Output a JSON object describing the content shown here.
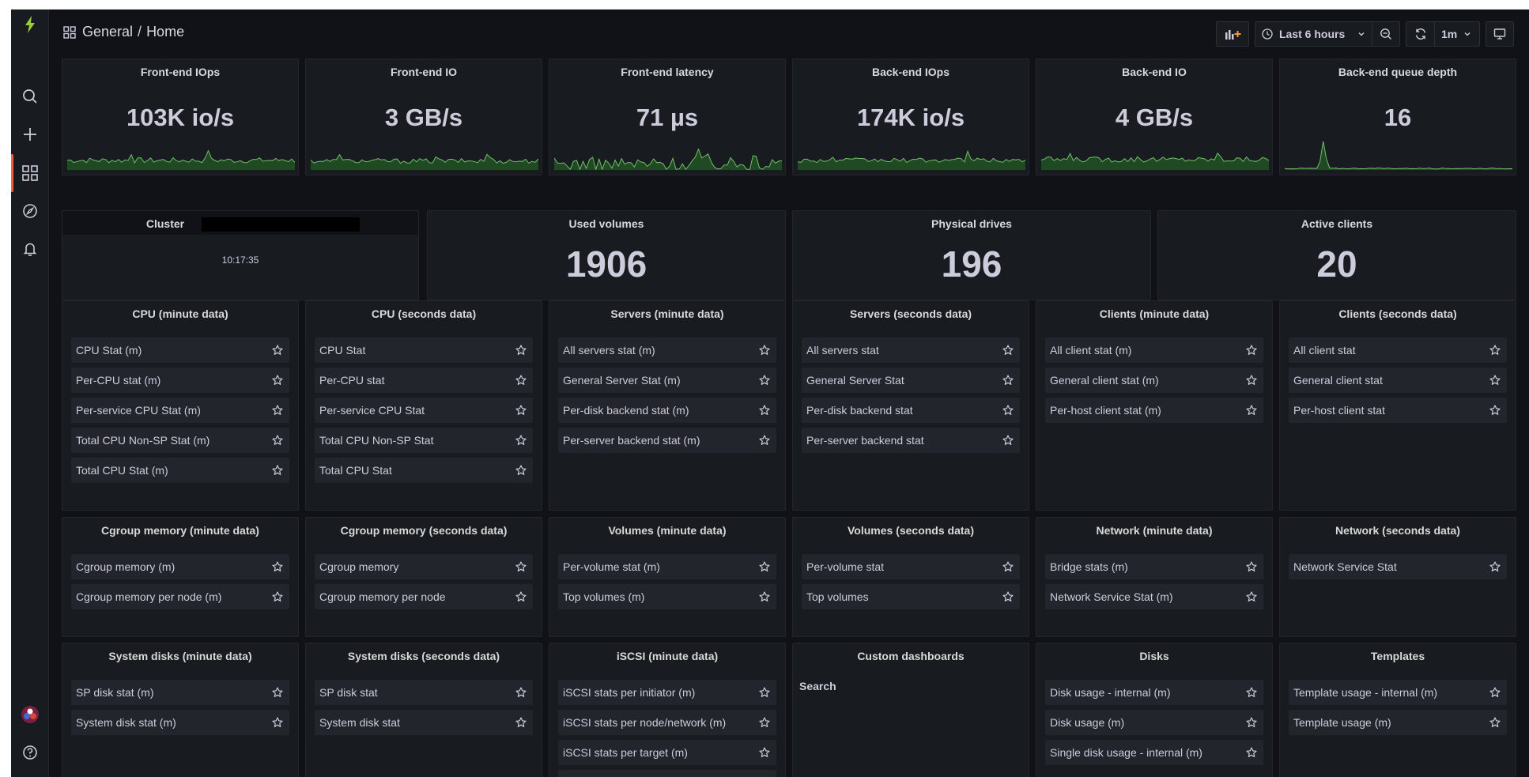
{
  "breadcrumb": {
    "folder": "General",
    "separator": "/",
    "page": "Home"
  },
  "toolbar": {
    "time_range": "Last 6 hours",
    "refresh_interval": "1m"
  },
  "colors": {
    "accent": "#f55f3e",
    "spark_line": "#73bf69",
    "spark_fill": "#1f4a24",
    "background": "#111217",
    "panel": "#181b1f"
  },
  "stats_row1": [
    {
      "title": "Front-end IOps",
      "value": "103K io/s"
    },
    {
      "title": "Front-end IO",
      "value": "3 GB/s"
    },
    {
      "title": "Front-end latency",
      "value": "71 µs"
    },
    {
      "title": "Back-end IOps",
      "value": "174K io/s"
    },
    {
      "title": "Back-end IO",
      "value": "4 GB/s"
    },
    {
      "title": "Back-end queue depth",
      "value": "16"
    }
  ],
  "cluster": {
    "title": "Cluster",
    "time": "10:17:35"
  },
  "stats_row2": [
    {
      "title": "Used volumes",
      "value": "1906"
    },
    {
      "title": "Physical drives",
      "value": "196"
    },
    {
      "title": "Active clients",
      "value": "20"
    }
  ],
  "lists_row1": [
    {
      "title": "CPU (minute data)",
      "items": [
        "CPU Stat (m)",
        "Per-CPU stat (m)",
        "Per-service CPU Stat (m)",
        "Total CPU Non-SP Stat (m)",
        "Total CPU Stat (m)"
      ]
    },
    {
      "title": "CPU (seconds data)",
      "items": [
        "CPU Stat",
        "Per-CPU stat",
        "Per-service CPU Stat",
        "Total CPU Non-SP Stat",
        "Total CPU Stat"
      ]
    },
    {
      "title": "Servers (minute data)",
      "items": [
        "All servers stat (m)",
        "General Server Stat (m)",
        "Per-disk backend stat (m)",
        "Per-server backend stat (m)"
      ]
    },
    {
      "title": "Servers (seconds data)",
      "items": [
        "All servers stat",
        "General Server Stat",
        "Per-disk backend stat",
        "Per-server backend stat"
      ]
    },
    {
      "title": "Clients (minute data)",
      "items": [
        "All client stat (m)",
        "General client stat (m)",
        "Per-host client stat (m)"
      ]
    },
    {
      "title": "Clients (seconds data)",
      "items": [
        "All client stat",
        "General client stat",
        "Per-host client stat"
      ]
    }
  ],
  "lists_row2": [
    {
      "title": "Cgroup memory (minute data)",
      "items": [
        "Cgroup memory (m)",
        "Cgroup memory per node (m)"
      ]
    },
    {
      "title": "Cgroup memory (seconds data)",
      "items": [
        "Cgroup memory",
        "Cgroup memory per node"
      ]
    },
    {
      "title": "Volumes (minute data)",
      "items": [
        "Per-volume stat (m)",
        "Top volumes (m)"
      ]
    },
    {
      "title": "Volumes (seconds data)",
      "items": [
        "Per-volume stat",
        "Top volumes"
      ]
    },
    {
      "title": "Network (minute data)",
      "items": [
        "Bridge stats (m)",
        "Network Service Stat (m)"
      ]
    },
    {
      "title": "Network (seconds data)",
      "items": [
        "Network Service Stat"
      ]
    }
  ],
  "lists_row3": [
    {
      "title": "System disks (minute data)",
      "items": [
        "SP disk stat (m)",
        "System disk stat (m)"
      ]
    },
    {
      "title": "System disks (seconds data)",
      "items": [
        "SP disk stat",
        "System disk stat"
      ]
    },
    {
      "title": "iSCSI (minute data)",
      "items": [
        "iSCSI stats per initiator (m)",
        "iSCSI stats per node/network (m)",
        "iSCSI stats per target (m)",
        ""
      ]
    },
    {
      "title": "Custom dashboards",
      "search_label": "Search",
      "items": []
    },
    {
      "title": "Disks",
      "items": [
        "Disk usage - internal (m)",
        "Disk usage (m)",
        "Single disk usage - internal (m)"
      ]
    },
    {
      "title": "Templates",
      "items": [
        "Template usage - internal (m)",
        "Template usage (m)"
      ]
    }
  ]
}
